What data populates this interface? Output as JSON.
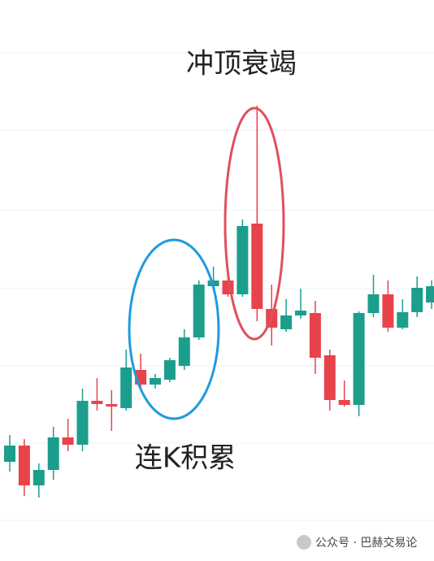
{
  "chart_data": {
    "type": "candlestick",
    "annotations": [
      "冲顶衰竭",
      "连K积累"
    ],
    "categories": [
      null,
      null,
      null,
      null,
      null,
      null,
      null,
      null,
      null,
      null,
      null,
      null,
      null,
      null,
      null,
      null,
      null,
      null,
      null,
      null,
      null,
      null,
      null,
      null,
      null,
      null,
      null,
      null,
      null,
      null
    ],
    "open": [
      122,
      142,
      93,
      112,
      152,
      143,
      197,
      193,
      188,
      235,
      217,
      223,
      240,
      275,
      338,
      345,
      328,
      415,
      310,
      285,
      302,
      305,
      253,
      198,
      192,
      305,
      328,
      287,
      306,
      318
    ],
    "high": [
      155,
      150,
      120,
      165,
      175,
      212,
      225,
      210,
      260,
      255,
      230,
      250,
      285,
      345,
      362,
      350,
      420,
      560,
      340,
      322,
      335,
      320,
      260,
      222,
      307,
      352,
      345,
      322,
      350,
      345
    ],
    "low": [
      110,
      80,
      78,
      100,
      135,
      135,
      185,
      160,
      185,
      210,
      212,
      220,
      235,
      272,
      335,
      325,
      325,
      295,
      265,
      282,
      298,
      230,
      185,
      190,
      178,
      300,
      282,
      285,
      300,
      310
    ],
    "close": [
      142,
      93,
      112,
      152,
      143,
      197,
      193,
      190,
      238,
      217,
      225,
      247,
      275,
      340,
      345,
      328,
      412,
      310,
      287,
      302,
      308,
      250,
      198,
      192,
      305,
      328,
      287,
      306,
      336,
      338
    ],
    "up_color": "#1b9e8c",
    "down_color": "#e8434b",
    "ylim": [
      0,
      690
    ],
    "yticks": [
      625,
      530,
      432,
      335,
      240,
      145,
      50
    ],
    "grid": true
  },
  "watermark": "公众号 · 巴赫交易论"
}
